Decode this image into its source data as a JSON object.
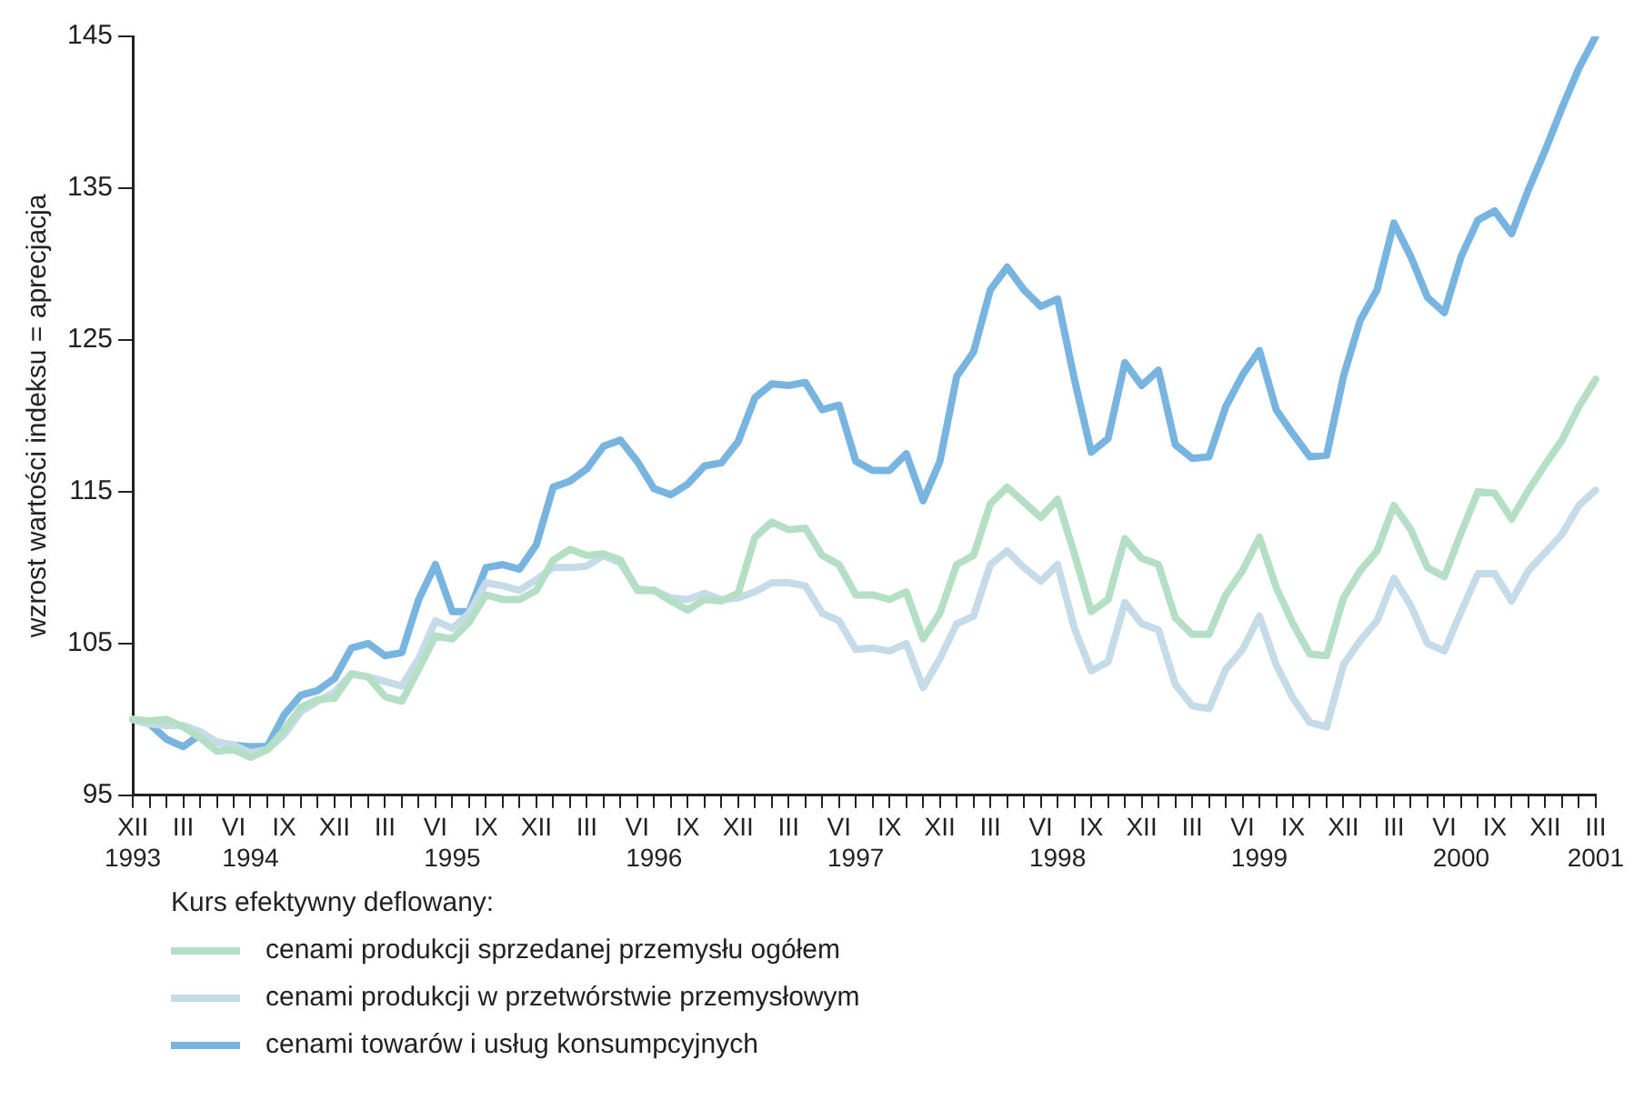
{
  "chart_data": {
    "type": "line",
    "ylabel": "wzrost wartości indeksu = aprecjacja",
    "legend_title": "Kurs efektywny deflowany:",
    "legend": "bottom",
    "grid": false,
    "marker": "none",
    "line_style": "solid",
    "categories": [
      "XII\n1993",
      null,
      null,
      "III",
      null,
      null,
      "VI",
      "\n1994",
      null,
      "IX",
      null,
      null,
      "XII",
      null,
      null,
      "III",
      null,
      null,
      "VI",
      "\n1995",
      null,
      "IX",
      null,
      null,
      "XII",
      null,
      null,
      "III",
      null,
      null,
      "VI",
      "\n1996",
      null,
      "IX",
      null,
      null,
      "XII",
      null,
      null,
      "III",
      null,
      null,
      "VI",
      "\n1997",
      null,
      "IX",
      null,
      null,
      "XII",
      null,
      null,
      "III",
      null,
      null,
      "VI",
      "\n1998",
      null,
      "IX",
      null,
      null,
      "XII",
      null,
      null,
      "III",
      null,
      null,
      "VI",
      "\n1999",
      null,
      "IX",
      null,
      null,
      "XII",
      null,
      null,
      "III",
      null,
      null,
      "VI",
      "\n2000",
      null,
      "IX",
      null,
      null,
      "XII",
      null,
      null,
      "III\n2001"
    ],
    "ylim": [
      95,
      145
    ],
    "yticks": [
      95,
      105,
      115,
      125,
      135,
      145
    ],
    "series": [
      {
        "name": "cenami produkcji sprzedanej przemysłu ogółem",
        "color": "#b5dfc5",
        "values": [
          100,
          99.9,
          100,
          99.5,
          98.8,
          97.9,
          98,
          97.5,
          98,
          99.3,
          100.8,
          101.3,
          101.4,
          103,
          102.8,
          101.5,
          101.2,
          103.3,
          105.5,
          105.3,
          106.4,
          108.2,
          107.9,
          107.9,
          108.5,
          110.5,
          111.2,
          110.8,
          110.9,
          110.5,
          108.5,
          108.5,
          107.8,
          107.2,
          107.9,
          107.8,
          108.3,
          112,
          113,
          112.5,
          112.6,
          110.8,
          110.2,
          108.2,
          108.2,
          107.9,
          108.4,
          105.3,
          107,
          110.2,
          110.8,
          114.2,
          115.3,
          114.3,
          113.3,
          114.5,
          110.9,
          107.1,
          107.9,
          111.9,
          110.6,
          110.2,
          106.7,
          105.6,
          105.6,
          108.2,
          109.8,
          112,
          108.7,
          106.3,
          104.3,
          104.2,
          108,
          109.8,
          111.1,
          114.1,
          112.5,
          110,
          109.4,
          112.3,
          115,
          114.9,
          113.2,
          115.1,
          116.8,
          118.4,
          120.6,
          122.4
        ]
      },
      {
        "name": "cenami produkcji w przetwórstwie przemysłowym",
        "color": "#c5dbe8",
        "values": [
          100,
          99.7,
          99.6,
          99.6,
          99.2,
          98.5,
          98.3,
          97.8,
          98,
          99,
          100.5,
          101.2,
          101.8,
          103,
          102.8,
          102.5,
          102.2,
          104,
          106.5,
          106,
          107,
          109,
          108.8,
          108.5,
          109.2,
          110,
          110,
          110.1,
          110.8,
          110.3,
          108.6,
          108.5,
          108,
          107.9,
          108.3,
          107.9,
          108,
          108.4,
          109,
          109,
          108.8,
          107,
          106.5,
          104.6,
          104.7,
          104.5,
          105,
          102.1,
          104,
          106.3,
          106.8,
          110.2,
          111.1,
          110,
          109.1,
          110.2,
          106,
          103.2,
          103.8,
          107.7,
          106.3,
          105.9,
          102.3,
          100.9,
          100.7,
          103.3,
          104.6,
          106.8,
          103.6,
          101.4,
          99.8,
          99.5,
          103.6,
          105.2,
          106.5,
          109.3,
          107.5,
          105,
          104.5,
          107.1,
          109.6,
          109.6,
          107.8,
          109.8,
          111,
          112.2,
          114.1,
          115.1
        ]
      },
      {
        "name": "cenami towarów i usług konsumpcyjnych",
        "color": "#78b4e0",
        "values": [
          100,
          99.7,
          98.7,
          98.2,
          99,
          98.5,
          98.3,
          98.2,
          98.2,
          100.3,
          101.6,
          101.9,
          102.7,
          104.7,
          105,
          104.2,
          104.4,
          107.9,
          110.2,
          107.1,
          107.1,
          110,
          110.2,
          109.9,
          111.5,
          115.3,
          115.7,
          116.5,
          118,
          118.4,
          117,
          115.2,
          114.8,
          115.5,
          116.7,
          116.9,
          118.3,
          121.2,
          122.1,
          122,
          122.2,
          120.4,
          120.7,
          117,
          116.4,
          116.4,
          117.5,
          114.4,
          117,
          122.6,
          124.2,
          128.3,
          129.8,
          128.3,
          127.2,
          127.7,
          122.4,
          117.6,
          118.5,
          123.5,
          122,
          123,
          118.1,
          117.2,
          117.3,
          120.6,
          122.7,
          124.3,
          120.4,
          118.8,
          117.3,
          117.4,
          122.6,
          126.3,
          128.3,
          132.7,
          130.5,
          127.8,
          126.8,
          130.5,
          132.9,
          133.5,
          132,
          134.9,
          137.5,
          140.3,
          142.9,
          145
        ]
      }
    ]
  }
}
